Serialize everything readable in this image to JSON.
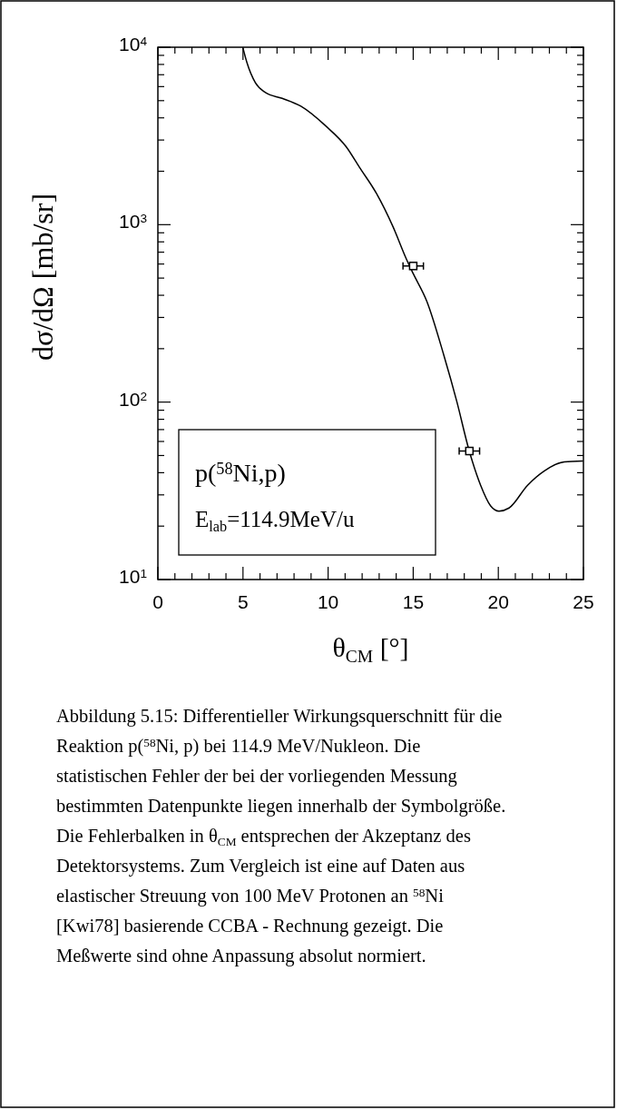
{
  "chart_data": {
    "type": "line",
    "xlabel": "θ$_{CM}$ [°]",
    "ylabel": "dσ/dΩ [mb/sr]",
    "log": "y",
    "xlim": [
      0,
      25
    ],
    "ylim": [
      10,
      10000
    ],
    "xticks": [
      0,
      {
        "value": 1,
        "label": null
      },
      {
        "value": 2,
        "label": null
      },
      {
        "value": 3,
        "label": null
      },
      {
        "value": 4,
        "label": null
      },
      5,
      {
        "value": 6,
        "label": null
      },
      {
        "value": 7,
        "label": null
      },
      {
        "value": 8,
        "label": null
      },
      {
        "value": 9,
        "label": null
      },
      10,
      {
        "value": 11,
        "label": null
      },
      {
        "value": 12,
        "label": null
      },
      {
        "value": 13,
        "label": null
      },
      {
        "value": 14,
        "label": null
      },
      15,
      {
        "value": 16,
        "label": null
      },
      {
        "value": 17,
        "label": null
      },
      {
        "value": 18,
        "label": null
      },
      {
        "value": 19,
        "label": null
      },
      20,
      {
        "value": 21,
        "label": null
      },
      {
        "value": 22,
        "label": null
      },
      {
        "value": 23,
        "label": null
      },
      {
        "value": 24,
        "label": null
      },
      25
    ],
    "yticks": [
      {
        "value": 10,
        "label": "10$^{1}$"
      },
      {
        "value": 20,
        "label": null
      },
      {
        "value": 30,
        "label": null
      },
      {
        "value": 40,
        "label": null
      },
      {
        "value": 50,
        "label": null
      },
      {
        "value": 60,
        "label": null
      },
      {
        "value": 70,
        "label": null
      },
      {
        "value": 80,
        "label": null
      },
      {
        "value": 90,
        "label": null
      },
      {
        "value": 100,
        "label": "10$^{2}$"
      },
      {
        "value": 200,
        "label": null
      },
      {
        "value": 300,
        "label": null
      },
      {
        "value": 400,
        "label": null
      },
      {
        "value": 500,
        "label": null
      },
      {
        "value": 600,
        "label": null
      },
      {
        "value": 700,
        "label": null
      },
      {
        "value": 800,
        "label": null
      },
      {
        "value": 900,
        "label": null
      },
      {
        "value": 1000,
        "label": "10$^{3}$"
      },
      {
        "value": 2000,
        "label": null
      },
      {
        "value": 3000,
        "label": null
      },
      {
        "value": 4000,
        "label": null
      },
      {
        "value": 5000,
        "label": null
      },
      {
        "value": 6000,
        "label": null
      },
      {
        "value": 7000,
        "label": null
      },
      {
        "value": 8000,
        "label": null
      },
      {
        "value": 9000,
        "label": null
      },
      {
        "value": 10000,
        "label": "10$^{4}$"
      }
    ],
    "grid": false,
    "series": [
      {
        "color": "#000000",
        "line_style": "solid",
        "marker": "none",
        "x": [
          5.0,
          5.23,
          5.73,
          6.32,
          7.3,
          8.4,
          9.86,
          11.06,
          11.85,
          12.84,
          13.82,
          14.6,
          15.0,
          15.8,
          16.79,
          17.57,
          18.27,
          18.96,
          19.55,
          20.04,
          20.63,
          21.72,
          22.71,
          23.88,
          24.98
        ],
        "values": [
          9900,
          8200,
          6300,
          5550,
          5150,
          4650,
          3600,
          2750,
          2100,
          1500,
          970,
          640,
          530,
          370,
          185,
          100,
          54,
          34,
          26,
          24.3,
          25.3,
          34,
          41,
          46,
          46.5
        ]
      },
      {
        "type": "scatter",
        "color": "#000000",
        "marker": "square",
        "x": [
          15.0,
          18.3
        ],
        "values": [
          585,
          53
        ],
        "xerrors": [
          0.6,
          0.6
        ]
      }
    ],
    "annotations": [
      "p($^{58}$Ni,p)",
      "E$_{lab}$=114.9MeV/u",
      "Abbildung 5.15: Differentieller Wirkungsquerschnitt für die Reaktion p($^{58}$Ni, p) bei 114.9 MeV/Nukleon. Die statistischen Fehler der bei der vorliegenden Messung bestimmten Datenpunkte liegen innerhalb der Symbolgröße. Die Fehlerbalken in θ$_{CM}$ entsprechen der Akzeptanz des Detektorsystems. Zum Vergleich ist eine auf Daten aus elastischer Streuung von 100 MeV Protonen an $^{58}$Ni [Kwi78] basierende CCBA - Rechnung gezeigt. Die Meßwerte sind ohne Anpassung absolut normiert."
    ]
  }
}
